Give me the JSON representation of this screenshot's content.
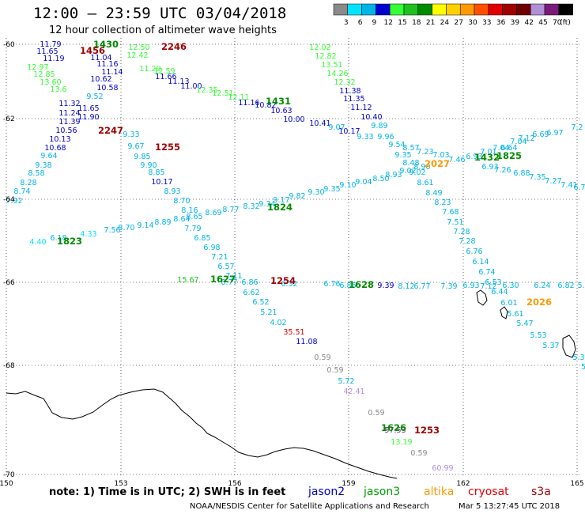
{
  "header": {
    "title": "12:00 – 23:59 UTC 03/04/2018",
    "subtitle": "12 hour collection of altimeter wave heights"
  },
  "legend": {
    "unit": "(ft)",
    "bins": [
      {
        "label": "3",
        "color": "#8a8a8a"
      },
      {
        "label": "6",
        "color": "#00e5ff"
      },
      {
        "label": "9",
        "color": "#00b4e6"
      },
      {
        "label": "12",
        "color": "#0000d0"
      },
      {
        "label": "15",
        "color": "#33ff33"
      },
      {
        "label": "18",
        "color": "#1fc01f"
      },
      {
        "label": "21",
        "color": "#008c00"
      },
      {
        "label": "24",
        "color": "#ffff00"
      },
      {
        "label": "27",
        "color": "#ffd000"
      },
      {
        "label": "30",
        "color": "#ff9900"
      },
      {
        "label": "33",
        "color": "#ff5000"
      },
      {
        "label": "36",
        "color": "#e00000"
      },
      {
        "label": "39",
        "color": "#a00000"
      },
      {
        "label": "42",
        "color": "#700000"
      },
      {
        "label": "45",
        "color": "#b090d8"
      },
      {
        "label": "70",
        "color": "#7a1a7a"
      },
      {
        "label": "",
        "color": "#000000"
      }
    ]
  },
  "axes": {
    "lon_ticks": [
      "150",
      "153",
      "156",
      "159",
      "162",
      "165"
    ],
    "lat_ticks": [
      "-60",
      "-62",
      "-64",
      "-66",
      "-68",
      "-70"
    ]
  },
  "footer": {
    "note": "note: 1) Time is in UTC; 2) SWH is in feet",
    "satellites": [
      {
        "name": "jason2",
        "color": "#0000cc"
      },
      {
        "name": "jason3",
        "color": "#00a000"
      },
      {
        "name": "altika",
        "color": "#ff9900"
      },
      {
        "name": "cryosat",
        "color": "#e00000"
      },
      {
        "name": "s3a",
        "color": "#a00000"
      }
    ],
    "credit": "NOAA/NESDIS Center for Satellite Applications and Research",
    "timestamp": "Mar  5 13:27:45 UTC 2018"
  },
  "tracks": [
    {
      "name": "t1430",
      "points": [
        {
          "v": "11.79",
          "c": "#0000d0"
        },
        {
          "v": "11.65",
          "c": "#0000d0"
        },
        {
          "v": "11.19",
          "c": "#0000d0"
        },
        {
          "v": "12.97",
          "c": "#33ff33"
        },
        {
          "v": "12.85",
          "c": "#33ff33"
        },
        {
          "v": "13.60",
          "c": "#33ff33"
        },
        {
          "v": "13.6",
          "c": "#33ff33"
        },
        {
          "v": "11.32",
          "c": "#0000d0"
        },
        {
          "v": "11.24",
          "c": "#0000d0"
        },
        {
          "v": "11.39",
          "c": "#0000d0"
        },
        {
          "v": "10.56",
          "c": "#0000d0"
        },
        {
          "v": "10.13",
          "c": "#0000d0"
        },
        {
          "v": "10.68",
          "c": "#0000d0"
        },
        {
          "v": "9.64",
          "c": "#00b4e6"
        },
        {
          "v": "9.38",
          "c": "#00b4e6"
        },
        {
          "v": "8.58",
          "c": "#00b4e6"
        },
        {
          "v": "8.28",
          "c": "#00b4e6"
        },
        {
          "v": "8.74",
          "c": "#00b4e6"
        },
        {
          "v": "7.92",
          "c": "#00b4e6"
        }
      ]
    },
    {
      "name": "t1456",
      "points": [
        {
          "v": "11.04",
          "c": "#0000d0"
        },
        {
          "v": "11.16",
          "c": "#0000d0"
        },
        {
          "v": "11.14",
          "c": "#0000d0"
        },
        {
          "v": "10.62",
          "c": "#0000d0"
        },
        {
          "v": "10.58",
          "c": "#0000d0"
        },
        {
          "v": "9.52",
          "c": "#00b4e6"
        },
        {
          "v": "11.65",
          "c": "#0000d0"
        },
        {
          "v": "11.90",
          "c": "#0000d0"
        },
        {
          "v": "9.33",
          "c": "#00b4e6"
        },
        {
          "v": "9.67",
          "c": "#00b4e6"
        },
        {
          "v": "9.85",
          "c": "#00b4e6"
        },
        {
          "v": "9.90",
          "c": "#00b4e6"
        },
        {
          "v": "8.85",
          "c": "#00b4e6"
        },
        {
          "v": "10.17",
          "c": "#0000d0"
        },
        {
          "v": "8.93",
          "c": "#00b4e6"
        },
        {
          "v": "8.70",
          "c": "#00b4e6"
        },
        {
          "v": "8.16",
          "c": "#00b4e6"
        },
        {
          "v": "7.79",
          "c": "#00b4e6"
        },
        {
          "v": "6.85",
          "c": "#00b4e6"
        },
        {
          "v": "6.98",
          "c": "#00b4e6"
        },
        {
          "v": "7.21",
          "c": "#00b4e6"
        },
        {
          "v": "6.57",
          "c": "#00b4e6"
        },
        {
          "v": "7.11",
          "c": "#00b4e6"
        },
        {
          "v": "6.62",
          "c": "#00b4e6"
        },
        {
          "v": "6.52",
          "c": "#00b4e6"
        },
        {
          "v": "5.21",
          "c": "#00b4e6"
        },
        {
          "v": "4.02",
          "c": "#00b4e6"
        },
        {
          "v": "35.51",
          "c": "#e00000"
        },
        {
          "v": "11.08",
          "c": "#0000d0"
        },
        {
          "v": "0.59",
          "c": "#8a8a8a"
        },
        {
          "v": "0.59",
          "c": "#8a8a8a"
        },
        {
          "v": "5.72",
          "c": "#00b4e6"
        },
        {
          "v": "42.41",
          "c": "#b090d8"
        },
        {
          "v": "0.59",
          "c": "#8a8a8a"
        },
        {
          "v": "57.53",
          "c": "#7a1a7a"
        },
        {
          "v": "13.19",
          "c": "#33ff33"
        },
        {
          "v": "0.59",
          "c": "#8a8a8a"
        },
        {
          "v": "60.99",
          "c": "#b090d8"
        }
      ]
    },
    {
      "name": "t2246",
      "points": [
        {
          "v": "12.50",
          "c": "#33ff33"
        },
        {
          "v": "12.42",
          "c": "#33ff33"
        },
        {
          "v": "11.29",
          "c": "#33ff33"
        },
        {
          "v": "12.59",
          "c": "#33ff33"
        },
        {
          "v": "11.66",
          "c": "#0000d0"
        },
        {
          "v": "11.13",
          "c": "#0000d0"
        },
        {
          "v": "11.00",
          "c": "#0000d0"
        },
        {
          "v": "12.35",
          "c": "#33ff33"
        },
        {
          "v": "12.51",
          "c": "#33ff33"
        },
        {
          "v": "12.11",
          "c": "#33ff33"
        },
        {
          "v": "11.16",
          "c": "#0000d0"
        },
        {
          "v": "10.82",
          "c": "#0000d0"
        },
        {
          "v": "10.63",
          "c": "#0000d0"
        },
        {
          "v": "10.00",
          "c": "#0000d0"
        },
        {
          "v": "10.41",
          "c": "#0000d0"
        },
        {
          "v": "9.07",
          "c": "#00b4e6"
        },
        {
          "v": "10.17",
          "c": "#0000d0"
        },
        {
          "v": "9.33",
          "c": "#00b4e6"
        },
        {
          "v": "9.96",
          "c": "#00b4e6"
        },
        {
          "v": "9.54",
          "c": "#00b4e6"
        }
      ]
    },
    {
      "name": "t_right",
      "points": [
        {
          "v": "12.02",
          "c": "#33ff33"
        },
        {
          "v": "12.82",
          "c": "#33ff33"
        },
        {
          "v": "13.51",
          "c": "#33ff33"
        },
        {
          "v": "14.26",
          "c": "#33ff33"
        },
        {
          "v": "12.32",
          "c": "#33ff33"
        },
        {
          "v": "11.38",
          "c": "#0000d0"
        },
        {
          "v": "11.35",
          "c": "#0000d0"
        },
        {
          "v": "11.12",
          "c": "#0000d0"
        },
        {
          "v": "10.40",
          "c": "#0000d0"
        },
        {
          "v": "9.89",
          "c": "#00b4e6"
        },
        {
          "v": "8.57",
          "c": "#00b4e6"
        },
        {
          "v": "9.35",
          "c": "#00b4e6"
        },
        {
          "v": "8.48",
          "c": "#00b4e6"
        },
        {
          "v": "9.02",
          "c": "#00b4e6"
        },
        {
          "v": "8.61",
          "c": "#00b4e6"
        },
        {
          "v": "8.49",
          "c": "#00b4e6"
        },
        {
          "v": "8.23",
          "c": "#00b4e6"
        },
        {
          "v": "7.68",
          "c": "#00b4e6"
        },
        {
          "v": "7.51",
          "c": "#00b4e6"
        },
        {
          "v": "7.28",
          "c": "#00b4e6"
        },
        {
          "v": "7.28",
          "c": "#00b4e6"
        },
        {
          "v": "6.76",
          "c": "#00b4e6"
        },
        {
          "v": "6.14",
          "c": "#00b4e6"
        },
        {
          "v": "6.74",
          "c": "#00b4e6"
        },
        {
          "v": "6.53",
          "c": "#00b4e6"
        },
        {
          "v": "6.44",
          "c": "#00b4e6"
        },
        {
          "v": "6.01",
          "c": "#00b4e6"
        },
        {
          "v": "5.61",
          "c": "#00b4e6"
        },
        {
          "v": "5.47",
          "c": "#00b4e6"
        },
        {
          "v": "5.53",
          "c": "#00b4e6"
        },
        {
          "v": "5.37",
          "c": "#00b4e6"
        },
        {
          "v": "5.3",
          "c": "#00b4e6"
        },
        {
          "v": "5",
          "c": "#00b4e6"
        }
      ]
    },
    {
      "name": "t_up",
      "points": [
        {
          "v": "4.40",
          "c": "#00e5ff"
        },
        {
          "v": "6.18",
          "c": "#00b4e6"
        },
        {
          "v": "4.33",
          "c": "#00e5ff"
        },
        {
          "v": "7.56",
          "c": "#00b4e6"
        },
        {
          "v": "8.70",
          "c": "#00b4e6"
        },
        {
          "v": "9.14",
          "c": "#00b4e6"
        },
        {
          "v": "8.89",
          "c": "#00b4e6"
        },
        {
          "v": "8.64",
          "c": "#00b4e6"
        },
        {
          "v": "8.65",
          "c": "#00b4e6"
        },
        {
          "v": "8.69",
          "c": "#00b4e6"
        },
        {
          "v": "8.77",
          "c": "#00b4e6"
        },
        {
          "v": "8.32",
          "c": "#00b4e6"
        },
        {
          "v": "9.34",
          "c": "#00b4e6"
        },
        {
          "v": "9.17",
          "c": "#00b4e6"
        },
        {
          "v": "9.82",
          "c": "#00b4e6"
        },
        {
          "v": "9.30",
          "c": "#00b4e6"
        },
        {
          "v": "9.35",
          "c": "#00b4e6"
        },
        {
          "v": "9.10",
          "c": "#00b4e6"
        },
        {
          "v": "9.04",
          "c": "#00b4e6"
        },
        {
          "v": "8.50",
          "c": "#00b4e6"
        },
        {
          "v": "8.93",
          "c": "#00b4e6"
        },
        {
          "v": "9.02",
          "c": "#00b4e6"
        },
        {
          "v": "8.90",
          "c": "#00b4e6"
        },
        {
          "v": "7.23",
          "c": "#00b4e6"
        },
        {
          "v": "7.03",
          "c": "#00b4e6"
        },
        {
          "v": "7.46",
          "c": "#00b4e6"
        },
        {
          "v": "6.93",
          "c": "#00b4e6"
        },
        {
          "v": "7.01",
          "c": "#00b4e6"
        },
        {
          "v": "7.04",
          "c": "#00b4e6"
        },
        {
          "v": "6.64",
          "c": "#00b4e6"
        },
        {
          "v": "7.04",
          "c": "#00b4e6"
        },
        {
          "v": "7.12",
          "c": "#00b4e6"
        },
        {
          "v": "6.69",
          "c": "#00b4e6"
        },
        {
          "v": "6.97",
          "c": "#00b4e6"
        },
        {
          "v": "7.2",
          "c": "#00b4e6"
        }
      ]
    },
    {
      "name": "t_down_right",
      "points": [
        {
          "v": "6.93",
          "c": "#00b4e6"
        },
        {
          "v": "7.26",
          "c": "#00b4e6"
        },
        {
          "v": "6.88",
          "c": "#00b4e6"
        },
        {
          "v": "7.35",
          "c": "#00b4e6"
        },
        {
          "v": "7.27",
          "c": "#00b4e6"
        },
        {
          "v": "7.41",
          "c": "#00b4e6"
        },
        {
          "v": "6.7",
          "c": "#00b4e6"
        }
      ]
    },
    {
      "name": "t_mid",
      "points": [
        {
          "v": "15.67",
          "c": "#1fc01f"
        },
        {
          "v": "6.77",
          "c": "#00b4e6"
        },
        {
          "v": "6.86",
          "c": "#00b4e6"
        },
        {
          "v": "6.32",
          "c": "#00b4e6"
        },
        {
          "v": "6.76",
          "c": "#00b4e6"
        },
        {
          "v": "6.86",
          "c": "#00b4e6"
        },
        {
          "v": "9.39",
          "c": "#0000d0"
        },
        {
          "v": "8.12",
          "c": "#00b4e6"
        },
        {
          "v": "6.77",
          "c": "#00b4e6"
        },
        {
          "v": "7.39",
          "c": "#00b4e6"
        },
        {
          "v": "6.93",
          "c": "#00b4e6"
        },
        {
          "v": "7.12",
          "c": "#00b4e6"
        },
        {
          "v": "6.30",
          "c": "#00b4e6"
        },
        {
          "v": "6.24",
          "c": "#00b4e6"
        },
        {
          "v": "6.82",
          "c": "#00b4e6"
        },
        {
          "v": "5.",
          "c": "#00b4e6"
        }
      ]
    }
  ],
  "time_labels": [
    {
      "v": "1430",
      "c": "#008c00"
    },
    {
      "v": "1456",
      "c": "#a00000"
    },
    {
      "v": "2246",
      "c": "#a00000"
    },
    {
      "v": "2247",
      "c": "#a00000"
    },
    {
      "v": "1255",
      "c": "#a00000"
    },
    {
      "v": "1431",
      "c": "#008c00"
    },
    {
      "v": "2027",
      "c": "#ff9900"
    },
    {
      "v": "1432",
      "c": "#008c00"
    },
    {
      "v": "1825",
      "c": "#008c00"
    },
    {
      "v": "1824",
      "c": "#008c00"
    },
    {
      "v": "1823",
      "c": "#008c00"
    },
    {
      "v": "1627",
      "c": "#008c00"
    },
    {
      "v": "1254",
      "c": "#a00000"
    },
    {
      "v": "1628",
      "c": "#008c00"
    },
    {
      "v": "2026",
      "c": "#ff9900"
    },
    {
      "v": "1253",
      "c": "#a00000"
    },
    {
      "v": "1626",
      "c": "#008c00"
    }
  ]
}
